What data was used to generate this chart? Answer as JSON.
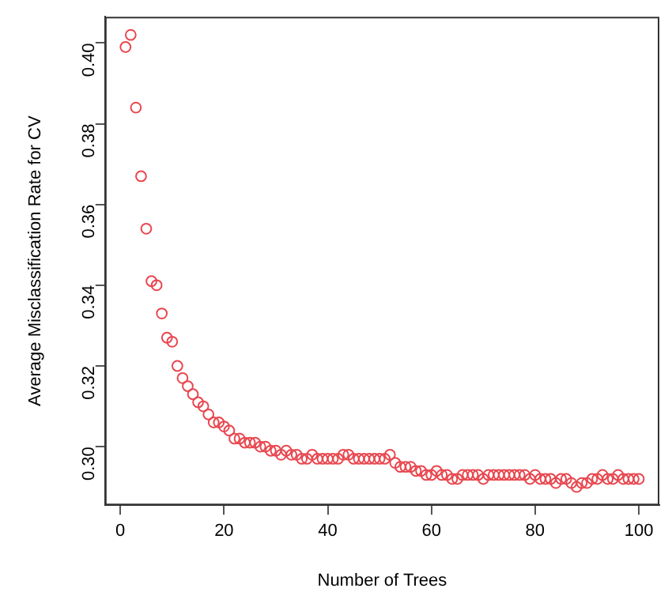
{
  "chart_data": {
    "type": "scatter",
    "xlabel": "Number of Trees",
    "ylabel": "Average Misclassification Rate for CV",
    "marker": "circle",
    "x": [
      1,
      2,
      3,
      4,
      5,
      6,
      7,
      8,
      9,
      10,
      11,
      12,
      13,
      14,
      15,
      16,
      17,
      18,
      19,
      20,
      21,
      22,
      23,
      24,
      25,
      26,
      27,
      28,
      29,
      30,
      31,
      32,
      33,
      34,
      35,
      36,
      37,
      38,
      39,
      40,
      41,
      42,
      43,
      44,
      45,
      46,
      47,
      48,
      49,
      50,
      51,
      52,
      53,
      54,
      55,
      56,
      57,
      58,
      59,
      60,
      61,
      62,
      63,
      64,
      65,
      66,
      67,
      68,
      69,
      70,
      71,
      72,
      73,
      74,
      75,
      76,
      77,
      78,
      79,
      80,
      81,
      82,
      83,
      84,
      85,
      86,
      87,
      88,
      89,
      90,
      91,
      92,
      93,
      94,
      95,
      96,
      97,
      98,
      99,
      100
    ],
    "series": [
      {
        "color": "#e8474f",
        "values": [
          0.399,
          0.402,
          0.384,
          0.367,
          0.354,
          0.341,
          0.34,
          0.333,
          0.327,
          0.326,
          0.32,
          0.317,
          0.315,
          0.313,
          0.311,
          0.31,
          0.308,
          0.306,
          0.306,
          0.305,
          0.304,
          0.302,
          0.302,
          0.301,
          0.301,
          0.301,
          0.3,
          0.3,
          0.299,
          0.299,
          0.298,
          0.299,
          0.298,
          0.298,
          0.297,
          0.297,
          0.298,
          0.297,
          0.297,
          0.297,
          0.297,
          0.297,
          0.298,
          0.298,
          0.297,
          0.297,
          0.297,
          0.297,
          0.297,
          0.297,
          0.297,
          0.298,
          0.296,
          0.295,
          0.295,
          0.295,
          0.294,
          0.294,
          0.293,
          0.293,
          0.294,
          0.293,
          0.293,
          0.292,
          0.292,
          0.293,
          0.293,
          0.293,
          0.293,
          0.292,
          0.293,
          0.293,
          0.293,
          0.293,
          0.293,
          0.293,
          0.293,
          0.293,
          0.292,
          0.293,
          0.292,
          0.292,
          0.292,
          0.291,
          0.292,
          0.292,
          0.291,
          0.29,
          0.291,
          0.291,
          0.292,
          0.292,
          0.293,
          0.292,
          0.292,
          0.293,
          0.292,
          0.292,
          0.292,
          0.292
        ]
      }
    ],
    "xlim": [
      -2.96,
      103.96
    ],
    "xticks": [
      0,
      20,
      40,
      60,
      80,
      100
    ],
    "ylim": [
      0.2855,
      0.4065
    ],
    "yticks": [
      {
        "value": 0.3,
        "label": "0.30"
      },
      {
        "value": 0.32,
        "label": "0.32"
      },
      {
        "value": 0.34,
        "label": "0.34"
      },
      {
        "value": 0.36,
        "label": "0.36"
      },
      {
        "value": 0.38,
        "label": "0.38"
      },
      {
        "value": 0.4,
        "label": "0.40"
      }
    ]
  }
}
